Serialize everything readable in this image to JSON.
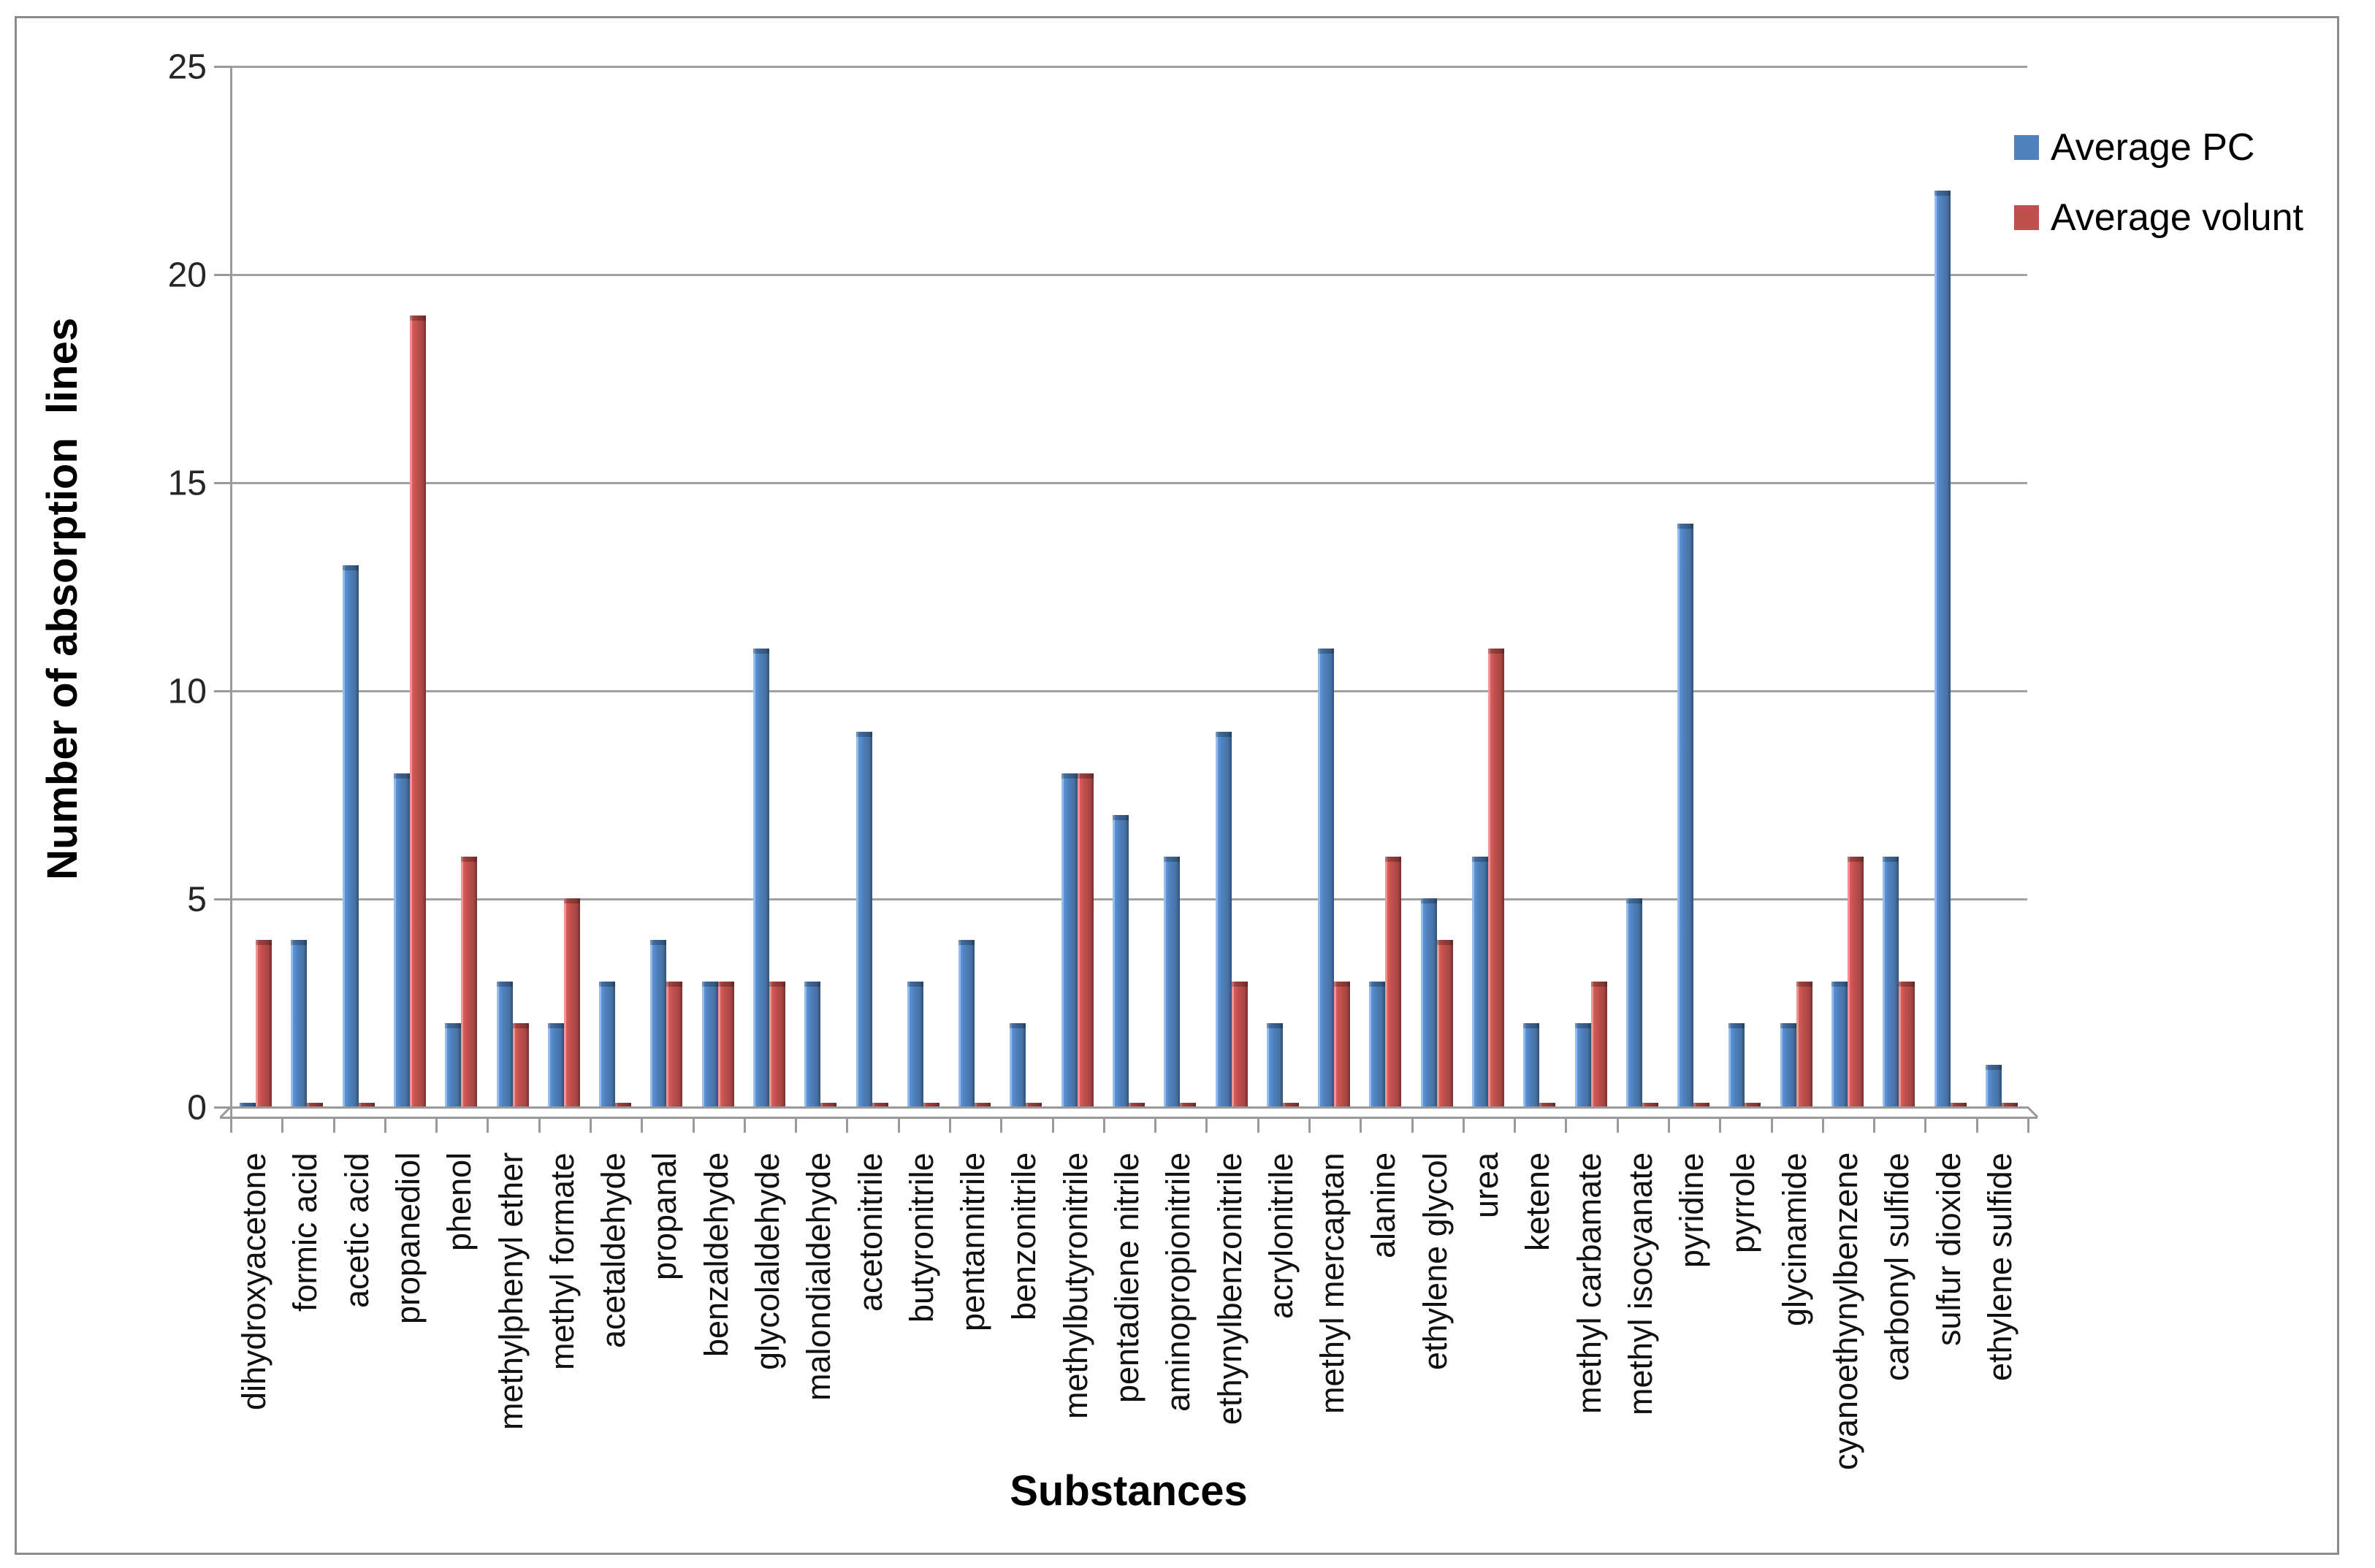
{
  "chart_data": {
    "type": "bar",
    "title": "",
    "xlabel": "Substances",
    "ylabel": "Number of absorption  lines",
    "ylim": [
      0,
      25
    ],
    "yticks": [
      0,
      5,
      10,
      15,
      20,
      25
    ],
    "grid": "horizontal",
    "legend_position": "top-right",
    "categories": [
      "dihydroxyacetone",
      "formic acid",
      "acetic acid",
      "propanediol",
      "phenol",
      "methylphenyl ether",
      "methyl formate",
      "acetaldehyde",
      "propanal",
      "benzaldehyde",
      "glycolaldehyde",
      "malondialdehyde",
      "acetonitrile",
      "butyronitrile",
      "pentannitrile",
      "benzonitrile",
      "methylbutyronitrile",
      "pentadiene nitrile",
      "aminopropionitrile",
      "ethynylbenzonitrile",
      "acrylonitrile",
      "methyl mercaptan",
      "alanine",
      "ethylene glycol",
      "urea",
      "ketene",
      "methyl carbamate",
      "methyl isocyanate",
      "pyridine",
      "pyrrole",
      "glycinamide",
      "cyanoethynylbenzene",
      "carbonyl sulfide",
      "sulfur dioxide",
      "ethylene sulfide"
    ],
    "series": [
      {
        "name": "Average PC",
        "color": "#4f81bd",
        "values": [
          0,
          4,
          13,
          8,
          2,
          3,
          2,
          3,
          4,
          3,
          11,
          3,
          9,
          3,
          4,
          2,
          8,
          7,
          6,
          9,
          2,
          11,
          3,
          5,
          6,
          2,
          2,
          5,
          14,
          2,
          2,
          3,
          6,
          22,
          1
        ]
      },
      {
        "name": "Average volunt",
        "color": "#c0504d",
        "values": [
          4,
          0,
          0,
          19,
          6,
          2,
          5,
          0,
          3,
          3,
          3,
          0,
          0,
          0,
          0,
          0,
          8,
          0,
          0,
          3,
          0,
          3,
          6,
          4,
          11,
          0,
          3,
          0,
          0,
          0,
          3,
          6,
          3,
          0,
          0
        ]
      }
    ]
  }
}
